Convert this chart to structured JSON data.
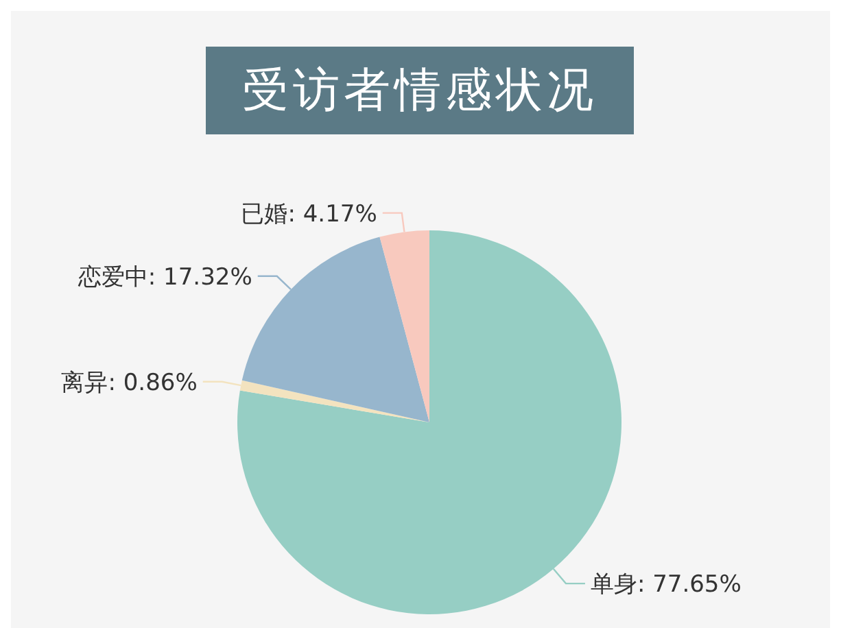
{
  "chart_data": {
    "type": "pie",
    "title": "受访者情感状况",
    "categories": [
      "单身",
      "离异",
      "恋爱中",
      "已婚"
    ],
    "values": [
      77.65,
      0.86,
      17.32,
      4.17
    ],
    "value_labels": [
      "77.65%",
      "0.86%",
      "17.32%",
      "4.17%"
    ],
    "colors": [
      "#96cec4",
      "#f3e3bf",
      "#97b6cd",
      "#f8c9be"
    ],
    "legend": false
  }
}
